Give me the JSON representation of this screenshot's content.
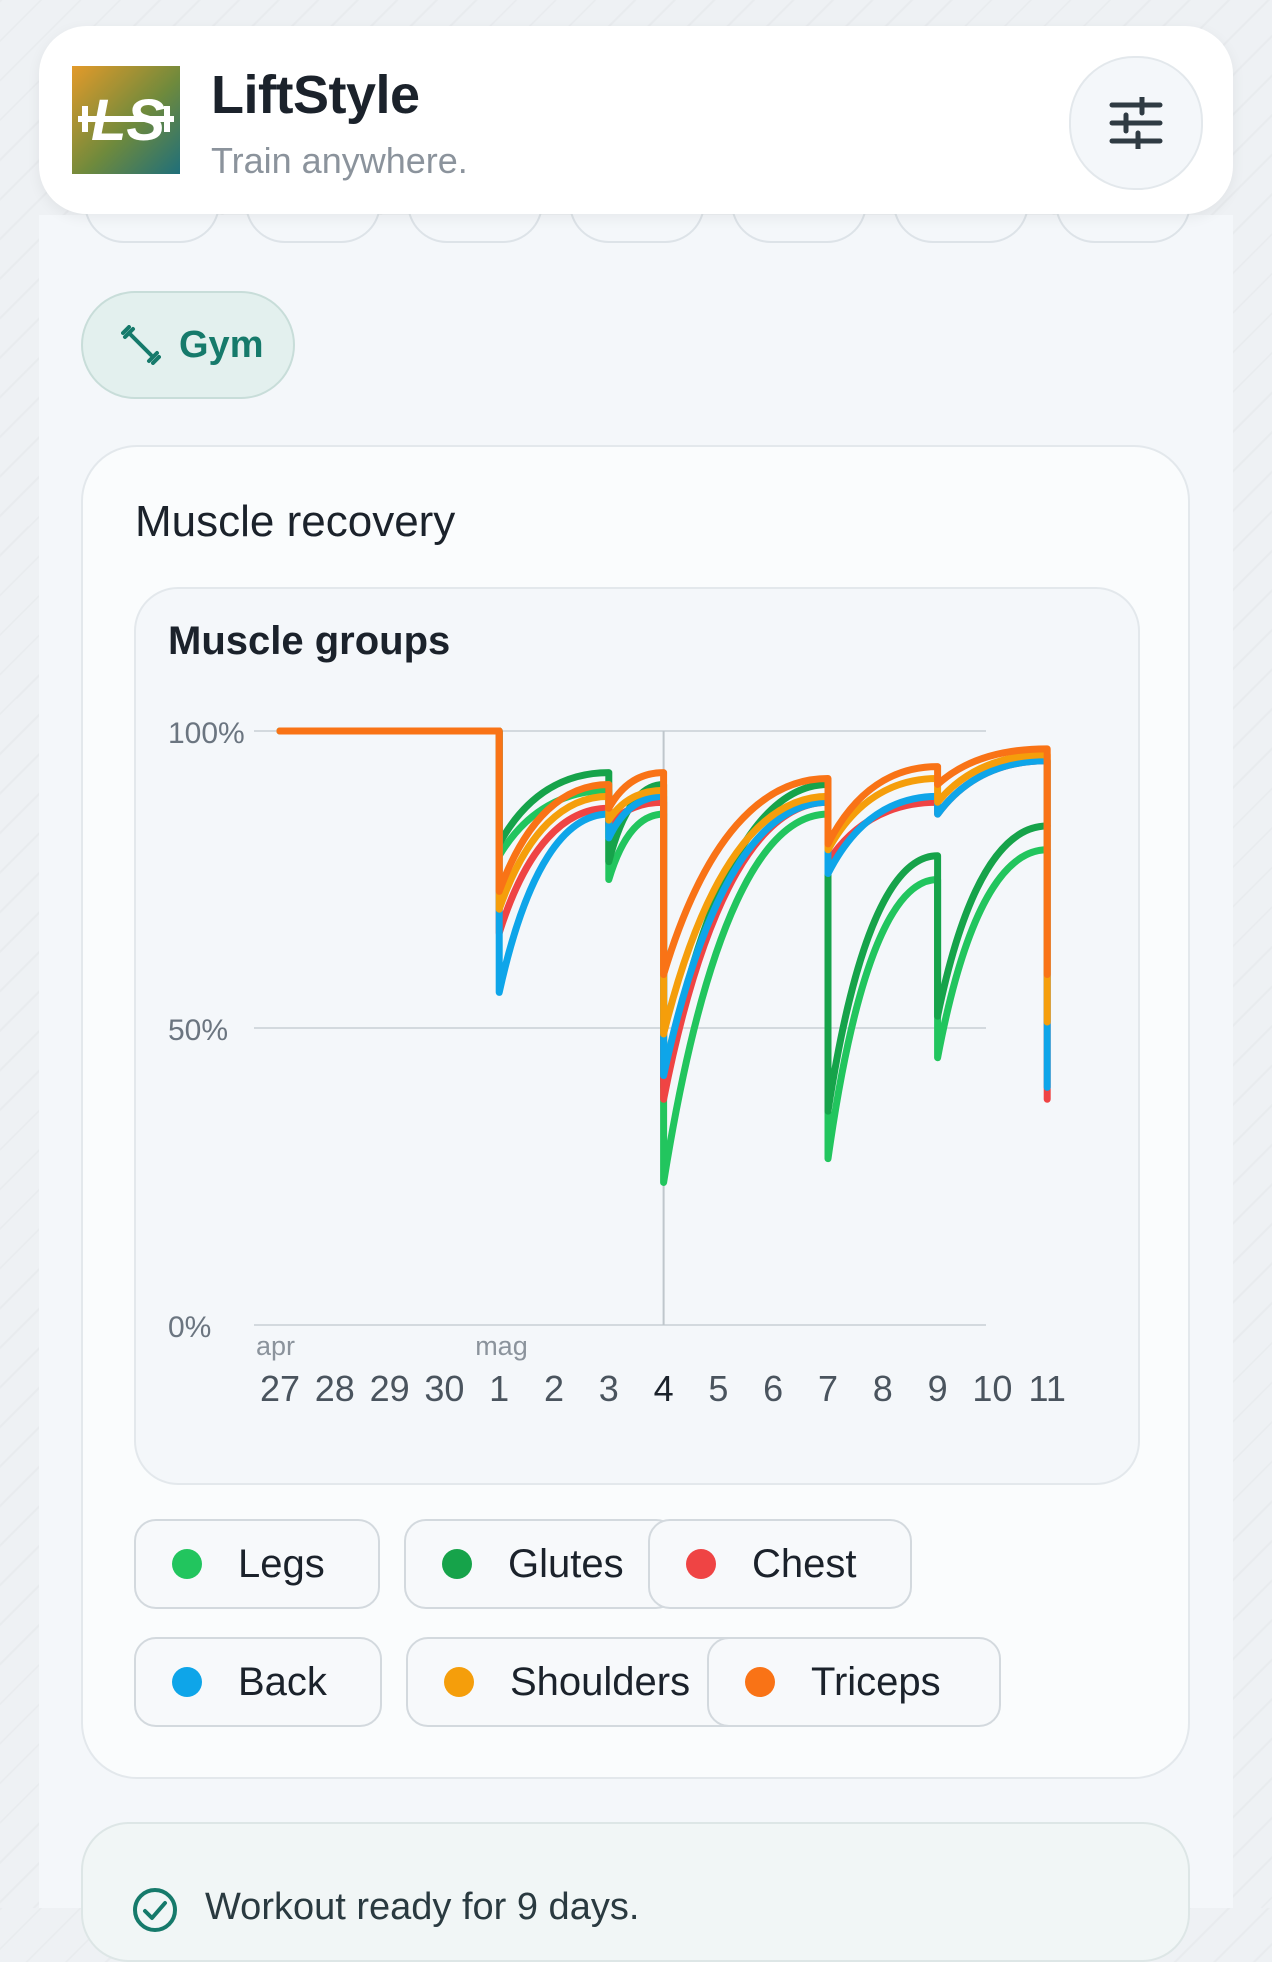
{
  "header": {
    "title": "LiftStyle",
    "subtitle": "Train anywhere.",
    "logo_text": "LS",
    "settings_icon": "sliders-icon"
  },
  "mode_chip": {
    "icon": "dumbbell-icon",
    "label": "Gym"
  },
  "recovery_card": {
    "title": "Muscle recovery",
    "chart_title": "Muscle groups"
  },
  "legend": [
    {
      "label": "Legs",
      "color": "#22c55e"
    },
    {
      "label": "Glutes",
      "color": "#16a34a"
    },
    {
      "label": "Chest",
      "color": "#ef4444"
    },
    {
      "label": "Back",
      "color": "#0ea5e9"
    },
    {
      "label": "Shoulders",
      "color": "#f59e0b"
    },
    {
      "label": "Triceps",
      "color": "#f97316"
    }
  ],
  "info": {
    "icon": "check-circle-icon",
    "text": "Workout ready for 9 days."
  },
  "chart_data": {
    "type": "line",
    "title": "Muscle groups",
    "y_ticks": [
      "100%",
      "50%",
      "0%"
    ],
    "ylim": [
      0,
      100
    ],
    "x": [
      27,
      28,
      29,
      30,
      1,
      2,
      3,
      4,
      5,
      6,
      7,
      8,
      9,
      10,
      11
    ],
    "x_labels": [
      "27",
      "28",
      "29",
      "30",
      "1",
      "2",
      "3",
      "4",
      "5",
      "6",
      "7",
      "8",
      "9",
      "10",
      "11"
    ],
    "month_labels": [
      {
        "at_index": 0,
        "label": "apr"
      },
      {
        "at_index": 4,
        "label": "mag"
      }
    ],
    "highlight_index": 7,
    "grid": true,
    "series": [
      {
        "name": "Legs",
        "color": "#22c55e",
        "points": [
          [
            0,
            100
          ],
          [
            4,
            100
          ],
          [
            4,
            79
          ],
          [
            6,
            90
          ],
          [
            6,
            75
          ],
          [
            7,
            86
          ],
          [
            7,
            24
          ],
          [
            10,
            86
          ],
          [
            10,
            28
          ],
          [
            12,
            75
          ],
          [
            12,
            45
          ],
          [
            14,
            80
          ]
        ]
      },
      {
        "name": "Glutes",
        "color": "#16a34a",
        "points": [
          [
            0,
            100
          ],
          [
            4,
            100
          ],
          [
            4,
            81
          ],
          [
            6,
            93
          ],
          [
            6,
            78
          ],
          [
            7,
            91
          ],
          [
            7,
            40
          ],
          [
            10,
            91
          ],
          [
            10,
            36
          ],
          [
            12,
            79
          ],
          [
            12,
            52
          ],
          [
            14,
            84
          ]
        ]
      },
      {
        "name": "Chest",
        "color": "#ef4444",
        "points": [
          [
            0,
            100
          ],
          [
            4,
            100
          ],
          [
            4,
            66
          ],
          [
            6,
            87
          ],
          [
            6,
            84
          ],
          [
            7,
            88
          ],
          [
            7,
            38
          ],
          [
            10,
            88
          ],
          [
            10,
            78
          ],
          [
            12,
            88
          ],
          [
            12,
            86
          ],
          [
            14,
            95
          ],
          [
            14,
            38
          ]
        ]
      },
      {
        "name": "Back",
        "color": "#0ea5e9",
        "points": [
          [
            0,
            100
          ],
          [
            4,
            100
          ],
          [
            4,
            56
          ],
          [
            6,
            86
          ],
          [
            6,
            82
          ],
          [
            7,
            89
          ],
          [
            7,
            42
          ],
          [
            10,
            88
          ],
          [
            10,
            76
          ],
          [
            12,
            89
          ],
          [
            12,
            86
          ],
          [
            14,
            95
          ],
          [
            14,
            40
          ]
        ]
      },
      {
        "name": "Shoulders",
        "color": "#f59e0b",
        "points": [
          [
            0,
            100
          ],
          [
            4,
            100
          ],
          [
            4,
            70
          ],
          [
            6,
            89
          ],
          [
            6,
            85
          ],
          [
            7,
            90
          ],
          [
            7,
            49
          ],
          [
            10,
            89
          ],
          [
            10,
            80
          ],
          [
            12,
            92
          ],
          [
            12,
            88
          ],
          [
            14,
            96
          ],
          [
            14,
            51
          ]
        ]
      },
      {
        "name": "Triceps",
        "color": "#f97316",
        "points": [
          [
            0,
            100
          ],
          [
            4,
            100
          ],
          [
            4,
            73
          ],
          [
            6,
            91
          ],
          [
            6,
            87
          ],
          [
            7,
            93
          ],
          [
            7,
            59
          ],
          [
            10,
            92
          ],
          [
            10,
            81
          ],
          [
            12,
            94
          ],
          [
            12,
            91
          ],
          [
            14,
            97
          ],
          [
            14,
            59
          ]
        ]
      }
    ]
  }
}
